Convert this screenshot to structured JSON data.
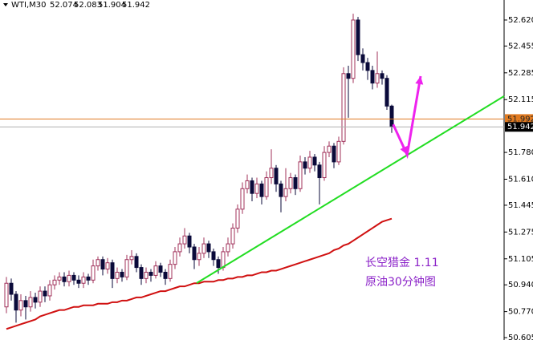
{
  "chart_data": {
    "type": "candlestick",
    "symbol": "WTI,M30",
    "up_color": "#a0305a",
    "down_color": "#0a0a3a",
    "ylim": [
      50.59,
      52.747
    ],
    "xlim": [
      -1.333,
      103.333
    ],
    "yticks": [
      {
        "value": 52.62,
        "label": "52.620"
      },
      52.455,
      52.285,
      52.115,
      {
        "value": 51.78,
        "label": "51.780"
      },
      {
        "value": 51.61,
        "label": "51.610"
      },
      51.445,
      51.275,
      51.105,
      {
        "value": 50.94,
        "label": "50.940"
      },
      {
        "value": 50.77,
        "label": "50.770"
      },
      50.605
    ],
    "open": [
      50.8,
      50.95,
      50.88,
      50.78,
      50.84,
      50.8,
      50.86,
      50.83,
      50.9,
      50.87,
      50.94,
      50.97,
      50.99,
      50.96,
      51.0,
      50.97,
      50.95,
      50.99,
      50.97,
      51.06,
      51.1,
      51.04,
      51.08,
      50.98,
      51.02,
      50.99,
      51.1,
      51.12,
      51.05,
      50.98,
      51.02,
      51.0,
      51.06,
      51.02,
      50.98,
      51.07,
      51.15,
      51.2,
      51.25,
      51.18,
      51.1,
      51.14,
      51.2,
      51.15,
      51.1,
      51.05,
      51.15,
      51.2,
      51.3,
      51.42,
      51.55,
      51.6,
      51.52,
      51.58,
      51.5,
      51.62,
      51.68,
      51.58,
      51.5,
      51.55,
      51.62,
      51.55,
      51.72,
      51.68,
      51.75,
      51.7,
      51.62,
      51.78,
      51.82,
      51.72,
      51.85,
      52.28,
      52.25,
      52.62,
      52.4,
      52.35,
      52.3,
      52.22,
      52.28,
      52.25,
      52.074
    ],
    "high": [
      50.99,
      50.98,
      50.9,
      50.88,
      50.87,
      50.9,
      50.89,
      50.93,
      50.93,
      50.97,
      51.0,
      51.02,
      51.02,
      51.03,
      51.02,
      51.0,
      51.02,
      51.01,
      51.1,
      51.12,
      51.12,
      51.11,
      51.1,
      51.05,
      51.04,
      51.13,
      51.16,
      51.14,
      51.07,
      51.05,
      51.04,
      51.09,
      51.08,
      51.04,
      51.1,
      51.18,
      51.24,
      51.3,
      51.27,
      51.2,
      51.18,
      51.24,
      51.22,
      51.17,
      51.12,
      51.18,
      51.24,
      51.33,
      51.45,
      51.59,
      51.64,
      51.62,
      51.62,
      51.6,
      51.66,
      51.8,
      51.7,
      51.6,
      51.68,
      51.65,
      51.64,
      51.76,
      51.75,
      51.79,
      51.77,
      51.72,
      51.82,
      51.85,
      51.84,
      51.88,
      52.32,
      52.33,
      52.66,
      52.64,
      52.44,
      52.38,
      52.33,
      52.42,
      52.3,
      52.27,
      52.083
    ],
    "low": [
      50.76,
      50.84,
      50.7,
      50.74,
      50.72,
      50.77,
      50.79,
      50.8,
      50.83,
      50.84,
      50.91,
      50.94,
      50.93,
      50.93,
      50.94,
      50.92,
      50.92,
      50.94,
      50.95,
      51.03,
      51.0,
      51.01,
      50.92,
      50.95,
      50.96,
      50.97,
      51.07,
      51.02,
      50.94,
      50.95,
      50.96,
      50.98,
      50.99,
      50.94,
      50.96,
      51.04,
      51.12,
      51.17,
      51.14,
      51.04,
      51.06,
      51.11,
      51.11,
      51.06,
      51.01,
      51.03,
      51.12,
      51.17,
      51.27,
      51.39,
      51.52,
      51.47,
      51.49,
      51.45,
      51.48,
      51.58,
      51.53,
      51.4,
      51.47,
      51.52,
      51.51,
      51.53,
      51.64,
      51.65,
      51.66,
      51.45,
      51.6,
      51.75,
      51.68,
      51.7,
      51.83,
      52.0,
      52.22,
      52.36,
      52.3,
      52.24,
      52.18,
      52.19,
      52.21,
      52.05,
      51.904
    ],
    "close": [
      50.95,
      50.88,
      50.78,
      50.84,
      50.8,
      50.86,
      50.83,
      50.9,
      50.87,
      50.94,
      50.97,
      50.99,
      50.96,
      51.0,
      50.97,
      50.95,
      50.99,
      50.97,
      51.06,
      51.1,
      51.04,
      51.08,
      50.98,
      51.02,
      50.99,
      51.1,
      51.12,
      51.05,
      50.98,
      51.02,
      51.0,
      51.06,
      51.02,
      50.98,
      51.07,
      51.15,
      51.2,
      51.25,
      51.18,
      51.1,
      51.14,
      51.2,
      51.15,
      51.1,
      51.05,
      51.15,
      51.2,
      51.3,
      51.42,
      51.55,
      51.6,
      51.52,
      51.58,
      51.5,
      51.62,
      51.68,
      51.58,
      51.5,
      51.55,
      51.62,
      51.55,
      51.72,
      51.68,
      51.75,
      51.7,
      51.62,
      51.78,
      51.82,
      51.72,
      51.85,
      52.28,
      52.25,
      52.62,
      52.4,
      52.35,
      52.3,
      52.22,
      52.28,
      52.25,
      52.074,
      51.942
    ],
    "ma": {
      "color": "#d01010",
      "values": [
        50.66,
        50.67,
        50.68,
        50.69,
        50.7,
        50.71,
        50.72,
        50.74,
        50.75,
        50.76,
        50.77,
        50.78,
        50.78,
        50.79,
        50.8,
        50.8,
        50.81,
        50.81,
        50.81,
        50.82,
        50.82,
        50.82,
        50.83,
        50.83,
        50.84,
        50.84,
        50.85,
        50.86,
        50.86,
        50.87,
        50.88,
        50.89,
        50.9,
        50.9,
        50.91,
        50.92,
        50.93,
        50.93,
        50.94,
        50.95,
        50.95,
        50.96,
        50.96,
        50.96,
        50.97,
        50.97,
        50.98,
        50.98,
        50.99,
        50.99,
        51.0,
        51.0,
        51.01,
        51.02,
        51.02,
        51.03,
        51.03,
        51.04,
        51.05,
        51.06,
        51.07,
        51.08,
        51.09,
        51.1,
        51.11,
        51.12,
        51.13,
        51.14,
        51.16,
        51.17,
        51.19,
        51.2,
        51.22,
        51.24,
        51.26,
        51.28,
        51.3,
        51.32,
        51.34,
        51.35,
        51.36
      ]
    },
    "ask": {
      "value": 51.992,
      "color": "#e07a20"
    },
    "trendline": {
      "color": "#22dd22",
      "x": [
        39.5,
        103.333
      ],
      "y": [
        50.951,
        52.137
      ]
    },
    "arrow": {
      "color": "#ee22ee",
      "x": [
        80.3,
        83.2,
        86.0
      ],
      "y": [
        51.958,
        51.765,
        52.264
      ]
    },
    "annotations": [
      "长空猎金  1.11",
      "原油30分钟图"
    ]
  }
}
